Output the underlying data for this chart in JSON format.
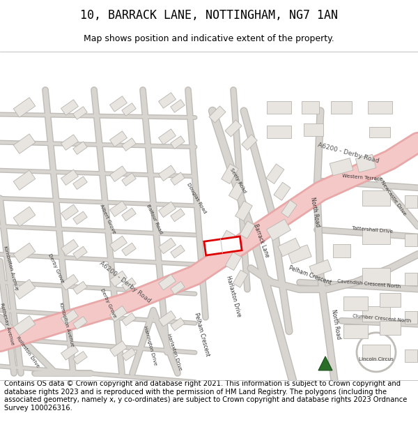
{
  "title": "10, BARRACK LANE, NOTTINGHAM, NG7 1AN",
  "subtitle": "Map shows position and indicative extent of the property.",
  "footer": "Contains OS data © Crown copyright and database right 2021. This information is subject to Crown copyright and database rights 2023 and is reproduced with the permission of HM Land Registry. The polygons (including the associated geometry, namely x, y co-ordinates) are subject to Crown copyright and database rights 2023 Ordnance Survey 100026316.",
  "title_fontsize": 12,
  "subtitle_fontsize": 9,
  "footer_fontsize": 7.2,
  "map_bg": "#ffffff",
  "road_pink": "#f5c8c8",
  "road_pink_edge": "#e8a8a8",
  "road_gray": "#d8d5d0",
  "road_gray_edge": "#c0bdb8",
  "building_fill": "#e8e5e0",
  "building_edge": "#b8b5b0",
  "highlight_red": "#dd0000",
  "marker_green": "#2a6e2a"
}
